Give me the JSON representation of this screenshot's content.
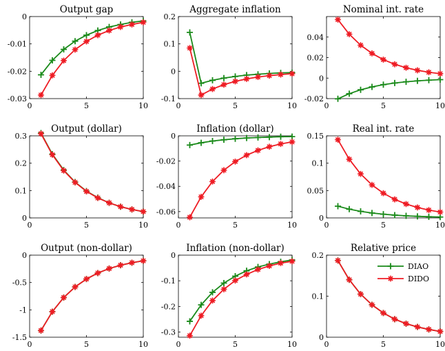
{
  "colors": {
    "DIAO": "#1a8a1a",
    "DIDO": "#ee1c24"
  },
  "legend": {
    "placement": "top-right",
    "entries": [
      "DIAO",
      "DIDO"
    ],
    "panel": 8
  },
  "chart_data": [
    {
      "type": "line",
      "title": "Output gap",
      "xlim": [
        0,
        10
      ],
      "ylim": [
        -0.03,
        0
      ],
      "xticks": [
        "0",
        "5",
        "10"
      ],
      "yticks": [
        "0",
        "-0.01",
        "-0.02",
        "-0.03"
      ],
      "ytick_values": [
        0,
        -0.01,
        -0.02,
        -0.03
      ],
      "x": [
        1,
        2,
        3,
        4,
        5,
        6,
        7,
        8,
        9,
        10
      ],
      "series": [
        {
          "name": "DIAO",
          "values": [
            -0.0213,
            -0.016,
            -0.012,
            -0.009,
            -0.0068,
            -0.0051,
            -0.0038,
            -0.0029,
            -0.0021,
            -0.0016
          ]
        },
        {
          "name": "DIDO",
          "values": [
            -0.0287,
            -0.0215,
            -0.0161,
            -0.0121,
            -0.0091,
            -0.0068,
            -0.0051,
            -0.0038,
            -0.0029,
            -0.0021
          ]
        }
      ]
    },
    {
      "type": "line",
      "title": "Aggregate inflation",
      "xlim": [
        0,
        10
      ],
      "ylim": [
        -0.1,
        0.2
      ],
      "xticks": [
        "0",
        "5",
        "10"
      ],
      "yticks": [
        "0.2",
        "0.1",
        "0",
        "-0.1"
      ],
      "ytick_values": [
        0.2,
        0.1,
        0,
        -0.1
      ],
      "x": [
        1,
        2,
        3,
        4,
        5,
        6,
        7,
        8,
        9,
        10
      ],
      "series": [
        {
          "name": "DIAO",
          "values": [
            0.142,
            -0.044,
            -0.033,
            -0.025,
            -0.019,
            -0.014,
            -0.011,
            -0.008,
            -0.006,
            -0.005
          ]
        },
        {
          "name": "DIDO",
          "values": [
            0.085,
            -0.087,
            -0.065,
            -0.049,
            -0.037,
            -0.028,
            -0.021,
            -0.016,
            -0.012,
            -0.009
          ]
        }
      ]
    },
    {
      "type": "line",
      "title": "Nominal int. rate",
      "xlim": [
        0,
        10
      ],
      "ylim": [
        -0.02,
        0.06
      ],
      "xticks": [
        "0",
        "5",
        "10"
      ],
      "yticks": [
        "0.04",
        "0.02",
        "0",
        "-0.02"
      ],
      "ytick_values": [
        0.04,
        0.02,
        0,
        -0.02
      ],
      "x": [
        1,
        2,
        3,
        4,
        5,
        6,
        7,
        8,
        9,
        10
      ],
      "series": [
        {
          "name": "DIAO",
          "values": [
            -0.0202,
            -0.0152,
            -0.0114,
            -0.0086,
            -0.0064,
            -0.0048,
            -0.0036,
            -0.0027,
            -0.002,
            -0.0015
          ]
        },
        {
          "name": "DIDO",
          "values": [
            0.057,
            0.0428,
            0.0321,
            0.0241,
            0.018,
            0.0135,
            0.0101,
            0.0076,
            0.0057,
            0.0043
          ]
        }
      ]
    },
    {
      "type": "line",
      "title": "Output (dollar)",
      "xlim": [
        0,
        10
      ],
      "ylim": [
        0,
        0.3
      ],
      "xticks": [
        "0",
        "5",
        "10"
      ],
      "yticks": [
        "0.3",
        "0.2",
        "0.1",
        "0"
      ],
      "ytick_values": [
        0.3,
        0.2,
        0.1,
        0
      ],
      "x": [
        1,
        2,
        3,
        4,
        5,
        6,
        7,
        8,
        9,
        10
      ],
      "series": [
        {
          "name": "DIAO",
          "values": [
            0.31,
            0.233,
            0.175,
            0.131,
            0.098,
            0.074,
            0.055,
            0.041,
            0.031,
            0.023
          ]
        },
        {
          "name": "DIDO",
          "values": [
            0.308,
            0.231,
            0.173,
            0.13,
            0.097,
            0.073,
            0.055,
            0.041,
            0.031,
            0.023
          ]
        }
      ]
    },
    {
      "type": "line",
      "title": "Inflation (dollar)",
      "xlim": [
        0,
        10
      ],
      "ylim": [
        -0.065,
        0
      ],
      "xticks": [
        "0",
        "5",
        "10"
      ],
      "yticks": [
        "0",
        "-0.02",
        "-0.04",
        "-0.06"
      ],
      "ytick_values": [
        0,
        -0.02,
        -0.04,
        -0.06
      ],
      "x": [
        1,
        2,
        3,
        4,
        5,
        6,
        7,
        8,
        9,
        10
      ],
      "series": [
        {
          "name": "DIAO",
          "values": [
            -0.0073,
            -0.0055,
            -0.0041,
            -0.0031,
            -0.0023,
            -0.0017,
            -0.0013,
            -0.001,
            -0.0007,
            -0.0006
          ]
        },
        {
          "name": "DIDO",
          "values": [
            -0.0645,
            -0.0483,
            -0.0362,
            -0.0272,
            -0.0204,
            -0.0153,
            -0.0115,
            -0.0086,
            -0.0064,
            -0.0048
          ]
        }
      ]
    },
    {
      "type": "line",
      "title": "Real int. rate",
      "xlim": [
        0,
        10
      ],
      "ylim": [
        0,
        0.15
      ],
      "xticks": [
        "0",
        "5",
        "10"
      ],
      "yticks": [
        "0.15",
        "0.1",
        "0.05",
        "0"
      ],
      "ytick_values": [
        0.15,
        0.1,
        0.05,
        0
      ],
      "x": [
        1,
        2,
        3,
        4,
        5,
        6,
        7,
        8,
        9,
        10
      ],
      "series": [
        {
          "name": "DIAO",
          "values": [
            0.0214,
            0.016,
            0.012,
            0.009,
            0.0068,
            0.0051,
            0.0038,
            0.0029,
            0.0021,
            0.0016
          ]
        },
        {
          "name": "DIDO",
          "values": [
            0.143,
            0.1072,
            0.0804,
            0.0603,
            0.0452,
            0.0339,
            0.0254,
            0.0191,
            0.0143,
            0.0107
          ]
        }
      ]
    },
    {
      "type": "line",
      "title": "Output (non-dollar)",
      "xlim": [
        0,
        10
      ],
      "ylim": [
        -1.5,
        0
      ],
      "xticks": [
        "0",
        "5",
        "10"
      ],
      "yticks": [
        "0",
        "-0.5",
        "-1",
        "-1.5"
      ],
      "ytick_values": [
        0,
        -0.5,
        -1,
        -1.5
      ],
      "x": [
        1,
        2,
        3,
        4,
        5,
        6,
        7,
        8,
        9,
        10
      ],
      "series": [
        {
          "name": "DIAO",
          "values": [
            -1.378,
            -1.033,
            -0.775,
            -0.581,
            -0.436,
            -0.327,
            -0.245,
            -0.184,
            -0.138,
            -0.103
          ]
        },
        {
          "name": "DIDO",
          "values": [
            -1.378,
            -1.033,
            -0.775,
            -0.581,
            -0.436,
            -0.327,
            -0.245,
            -0.184,
            -0.138,
            -0.103
          ]
        }
      ]
    },
    {
      "type": "line",
      "title": "Inflation (non-dollar)",
      "xlim": [
        0,
        10
      ],
      "ylim": [
        -0.32,
        0
      ],
      "xticks": [
        "0",
        "5",
        "10"
      ],
      "yticks": [
        "0",
        "-0.1",
        "-0.2",
        "-0.3"
      ],
      "ytick_values": [
        0,
        -0.1,
        -0.2,
        -0.3
      ],
      "x": [
        1,
        2,
        3,
        4,
        5,
        6,
        7,
        8,
        9,
        10
      ],
      "series": [
        {
          "name": "DIAO",
          "values": [
            -0.258,
            -0.194,
            -0.145,
            -0.109,
            -0.082,
            -0.061,
            -0.046,
            -0.035,
            -0.026,
            -0.019
          ]
        },
        {
          "name": "DIDO",
          "values": [
            -0.314,
            -0.236,
            -0.177,
            -0.133,
            -0.099,
            -0.075,
            -0.056,
            -0.042,
            -0.031,
            -0.024
          ]
        }
      ]
    },
    {
      "type": "line",
      "title": "Relative price",
      "xlim": [
        0,
        10
      ],
      "ylim": [
        0,
        0.2
      ],
      "xticks": [
        "0",
        "5",
        "10"
      ],
      "yticks": [
        "0.2",
        "0.1",
        "0"
      ],
      "ytick_values": [
        0.2,
        0.1,
        0
      ],
      "x": [
        1,
        2,
        3,
        4,
        5,
        6,
        7,
        8,
        9,
        10
      ],
      "series": [
        {
          "name": "DIAO",
          "values": [
            0.187,
            0.14,
            0.105,
            0.079,
            0.059,
            0.044,
            0.033,
            0.025,
            0.019,
            0.014
          ]
        },
        {
          "name": "DIDO",
          "values": [
            0.187,
            0.14,
            0.105,
            0.079,
            0.059,
            0.044,
            0.033,
            0.025,
            0.019,
            0.014
          ]
        }
      ]
    }
  ]
}
